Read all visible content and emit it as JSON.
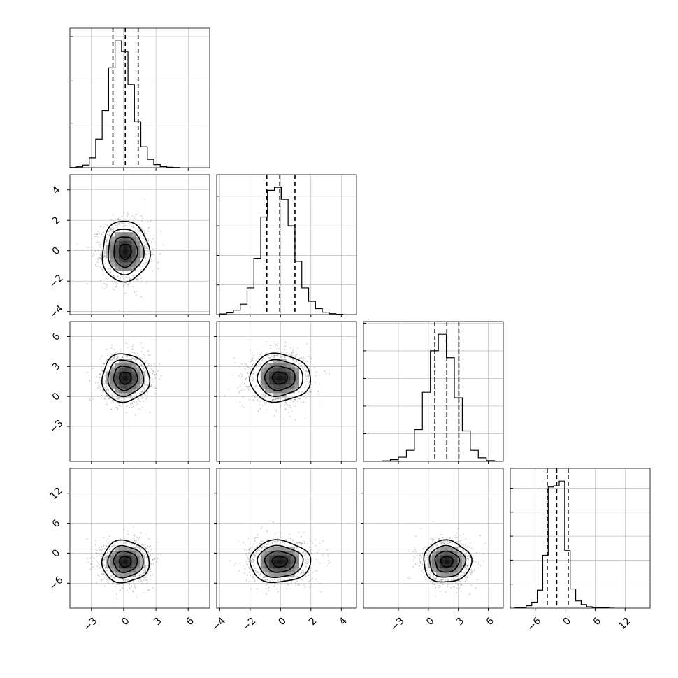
{
  "chart_data": {
    "type": "corner",
    "n_params": 4,
    "parameter_labels": [
      "",
      "",
      "",
      ""
    ],
    "title": "",
    "grid": true,
    "colors": {
      "line": "#000000",
      "scatter": "#888888",
      "grid": "#b0b0b0"
    },
    "quantile_lines": "dashed",
    "axes_ranges": [
      [
        -5.0,
        8.0
      ],
      [
        -4.2,
        5.0
      ],
      [
        -6.5,
        7.5
      ],
      [
        -11.0,
        17.0
      ]
    ],
    "x_ticks": [
      [
        -3,
        0,
        3,
        6
      ],
      [
        -4,
        -2,
        0,
        2,
        4
      ],
      [
        -3,
        0,
        3,
        6
      ],
      [
        -6,
        0,
        6,
        12
      ]
    ],
    "y_ticks": [
      [],
      [
        -4,
        -2,
        0,
        2,
        4
      ],
      [
        -3,
        0,
        3,
        6
      ],
      [
        -6,
        0,
        6,
        12
      ]
    ],
    "x_tick_labels": [
      [
        "−3",
        "0",
        "3",
        "6"
      ],
      [
        "−4",
        "−2",
        "0",
        "2",
        "4"
      ],
      [
        "−3",
        "0",
        "3",
        "6"
      ],
      [
        "−6",
        "0",
        "6",
        "12"
      ]
    ],
    "y_tick_labels": [
      [],
      [
        "−4",
        "−2",
        "0",
        "2",
        "4"
      ],
      [
        "−3",
        "0",
        "3",
        "6"
      ],
      [
        "−6",
        "0",
        "6",
        "12"
      ]
    ],
    "histograms": [
      {
        "param": 0,
        "bin_edges": [
          -5.0,
          -4.4,
          -3.8,
          -3.2,
          -2.6,
          -2.0,
          -1.4,
          -0.8,
          -0.2,
          0.4,
          1.0,
          1.6,
          2.2,
          2.8,
          3.4,
          4.0,
          4.6,
          5.2
        ],
        "counts": [
          1,
          4,
          12,
          45,
          130,
          260,
          455,
          580,
          530,
          380,
          210,
          95,
          38,
          14,
          5,
          2,
          1
        ],
        "quantiles": [
          -1.0,
          0.15,
          1.35
        ]
      },
      {
        "param": 1,
        "bin_edges": [
          -4.0,
          -3.55,
          -3.1,
          -2.65,
          -2.2,
          -1.75,
          -1.3,
          -0.85,
          -0.4,
          0.05,
          0.5,
          0.95,
          1.4,
          1.85,
          2.3,
          2.75,
          3.2,
          3.65,
          4.1
        ],
        "counts": [
          2,
          6,
          15,
          35,
          90,
          190,
          330,
          420,
          430,
          390,
          300,
          180,
          90,
          45,
          20,
          8,
          3,
          1
        ],
        "quantiles": [
          -0.9,
          -0.05,
          0.95
        ]
      },
      {
        "param": 2,
        "bin_edges": [
          -4.6,
          -3.8,
          -3.0,
          -2.2,
          -1.4,
          -0.6,
          0.2,
          1.0,
          1.8,
          2.6,
          3.4,
          4.2,
          5.0,
          5.8,
          6.6
        ],
        "counts": [
          2,
          6,
          15,
          40,
          115,
          250,
          400,
          460,
          375,
          230,
          110,
          40,
          13,
          3
        ],
        "quantiles": [
          0.65,
          1.85,
          3.05
        ]
      },
      {
        "param": 3,
        "bin_edges": [
          -10.0,
          -8.9,
          -7.8,
          -6.7,
          -5.6,
          -4.5,
          -3.4,
          -2.3,
          -1.2,
          -0.1,
          1.0,
          2.1,
          3.2,
          4.3,
          5.4,
          6.5,
          7.6,
          8.7,
          9.8
        ],
        "counts": [
          1,
          3,
          10,
          25,
          75,
          220,
          505,
          510,
          530,
          240,
          80,
          30,
          15,
          6,
          3,
          1,
          1,
          0
        ],
        "quantiles": [
          -3.6,
          -1.7,
          0.6
        ]
      }
    ],
    "pairs": [
      {
        "x_param": 0,
        "y_param": 1,
        "mean": [
          0.15,
          -0.05
        ],
        "sigma": [
          1.1,
          1.0
        ],
        "contour_levels_sigma": [
          0.5,
          1.0,
          1.5,
          2.0
        ]
      },
      {
        "x_param": 0,
        "y_param": 2,
        "mean": [
          0.15,
          1.85
        ],
        "sigma": [
          1.1,
          1.2
        ],
        "contour_levels_sigma": [
          0.5,
          1.0,
          1.5,
          2.0
        ]
      },
      {
        "x_param": 1,
        "y_param": 2,
        "mean": [
          -0.05,
          1.85
        ],
        "sigma": [
          1.0,
          1.2
        ],
        "contour_levels_sigma": [
          0.5,
          1.0,
          1.5,
          2.0
        ]
      },
      {
        "x_param": 0,
        "y_param": 3,
        "mean": [
          0.15,
          -1.7
        ],
        "sigma": [
          1.1,
          2.1
        ],
        "contour_levels_sigma": [
          0.5,
          1.0,
          1.5,
          2.0
        ]
      },
      {
        "x_param": 1,
        "y_param": 3,
        "mean": [
          -0.05,
          -1.7
        ],
        "sigma": [
          1.0,
          2.1
        ],
        "contour_levels_sigma": [
          0.5,
          1.0,
          1.5,
          2.0
        ]
      },
      {
        "x_param": 2,
        "y_param": 3,
        "mean": [
          1.85,
          -1.7
        ],
        "sigma": [
          1.2,
          2.1
        ],
        "contour_levels_sigma": [
          0.5,
          1.0,
          1.5,
          2.0
        ]
      }
    ]
  }
}
